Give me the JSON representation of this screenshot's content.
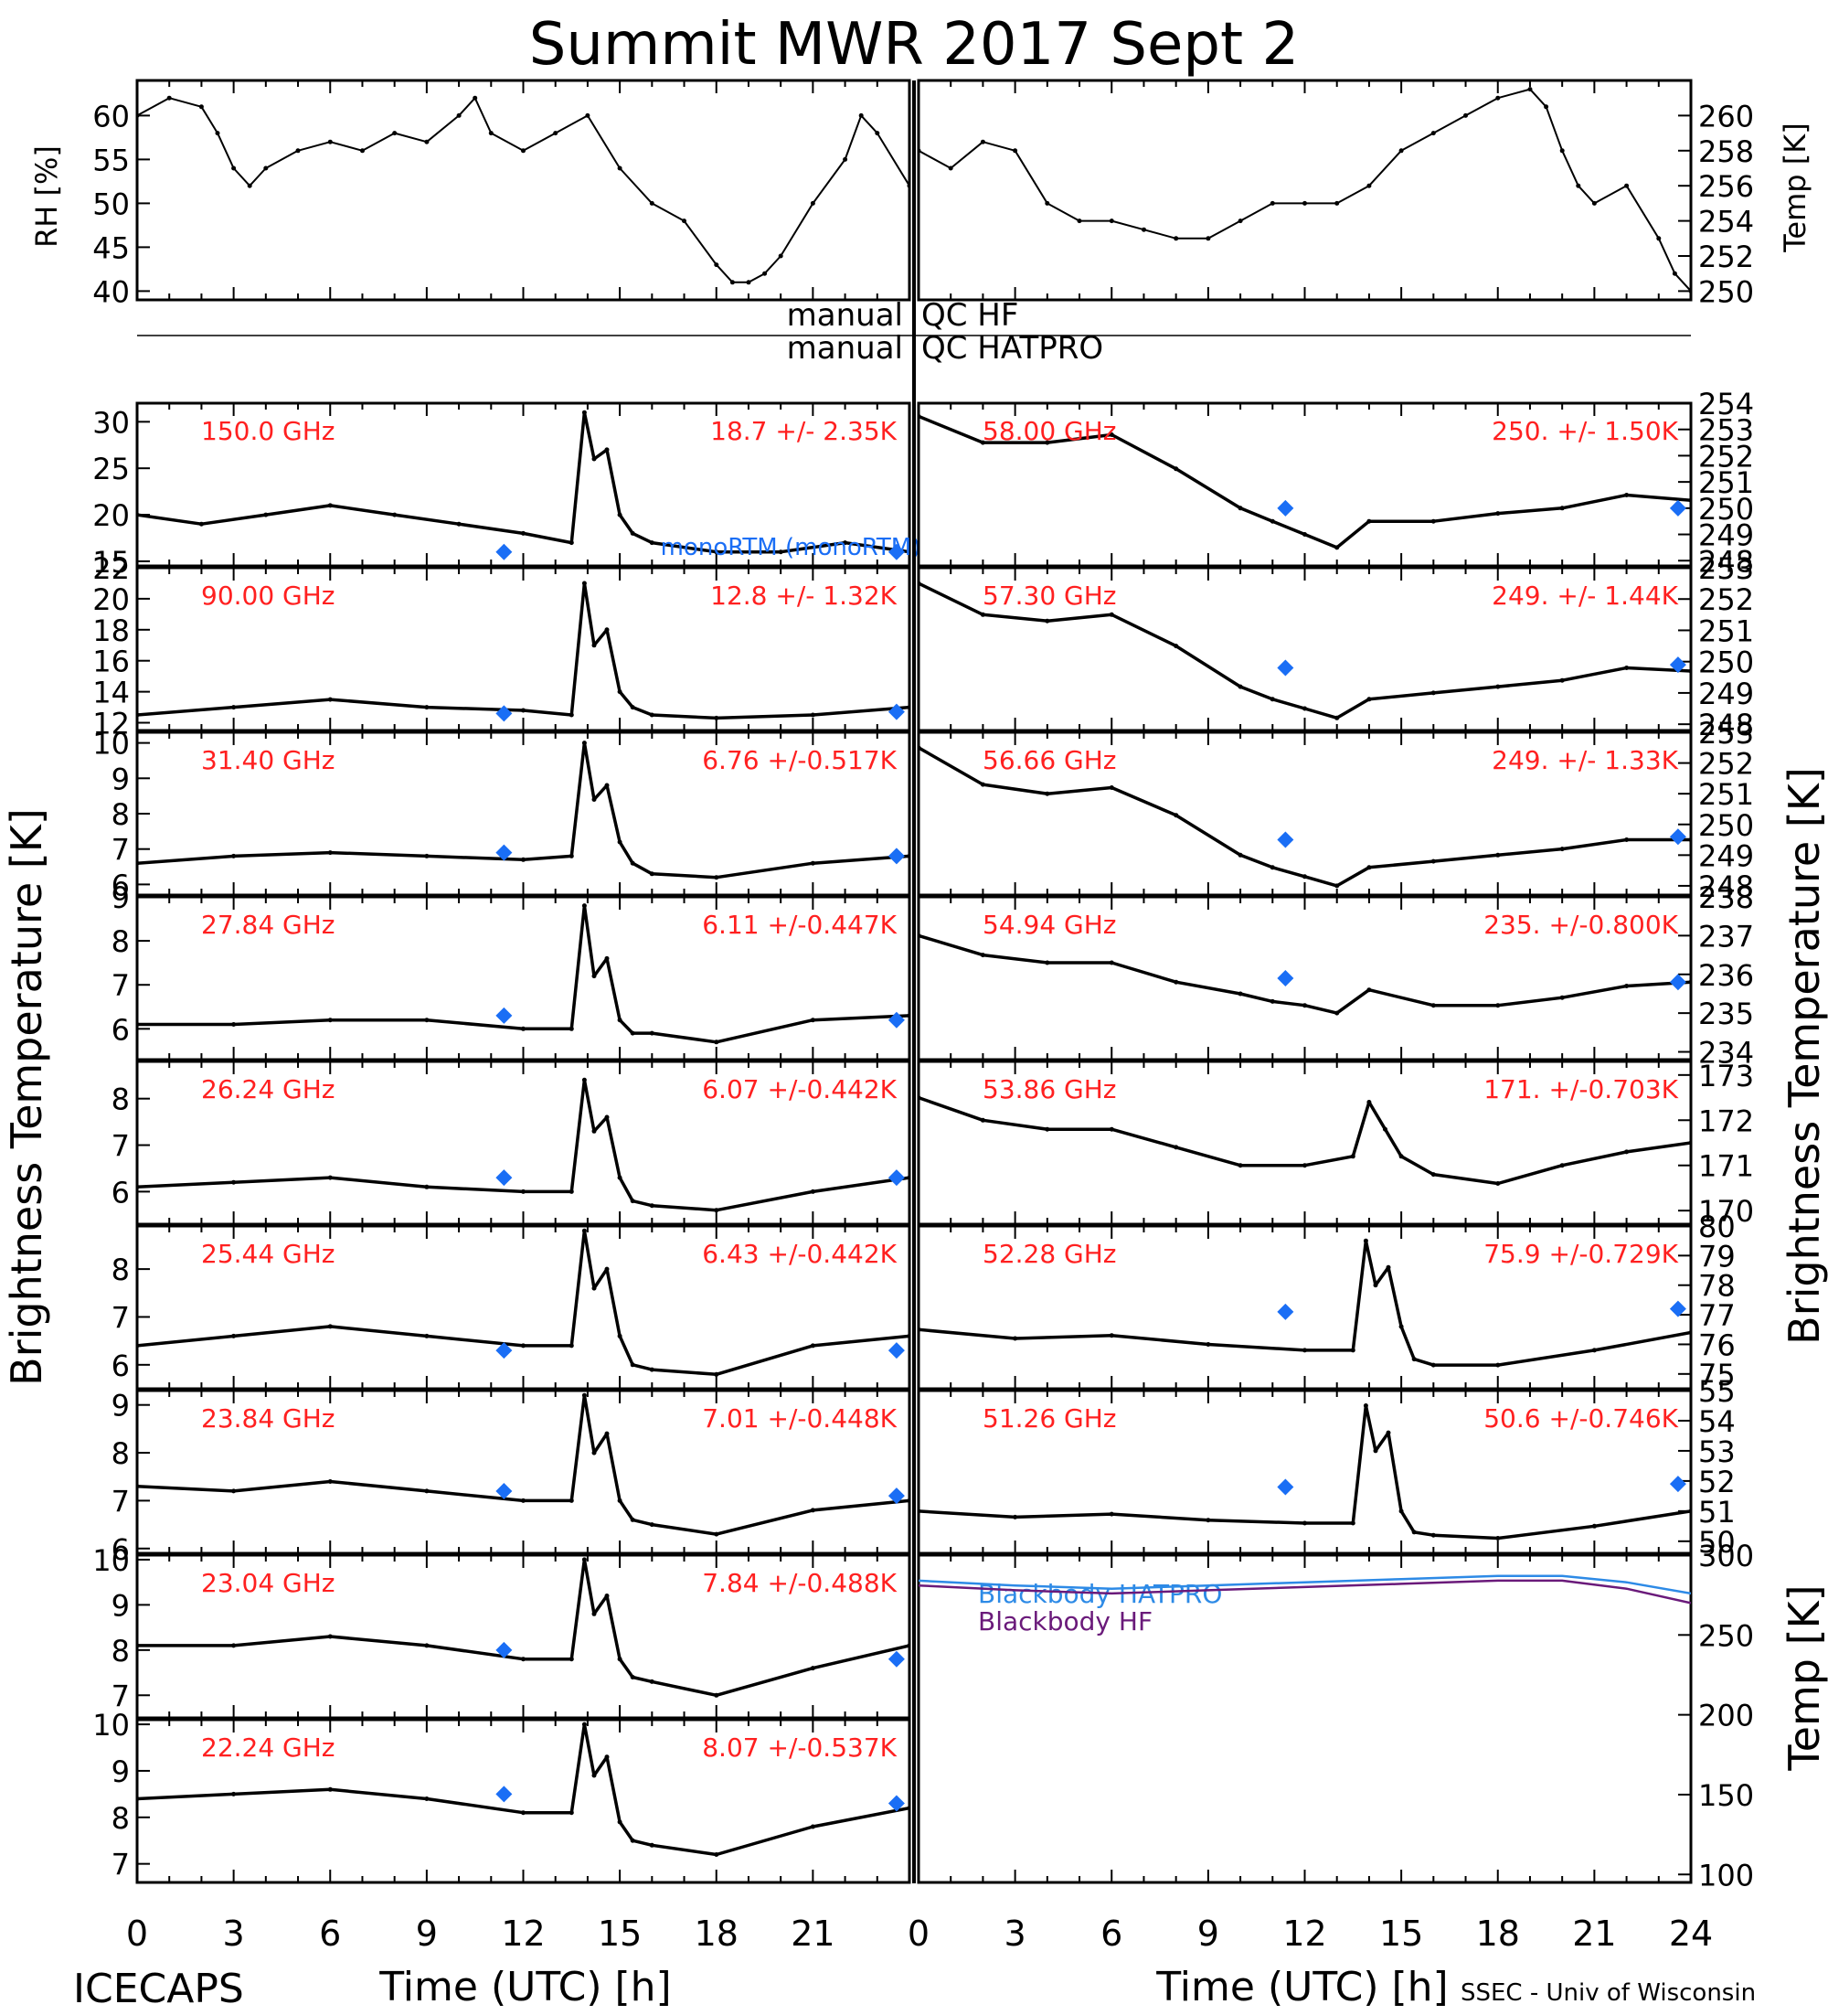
{
  "title": "Summit MWR 2017 Sept  2",
  "footer": {
    "left": "ICECAPS",
    "right": "SSEC - Univ of Wisconsin"
  },
  "qc": {
    "left1": "manual",
    "right1": "QC HF",
    "left2": "manual",
    "right2": "QC HATPRO"
  },
  "labels": {
    "rh": "RH [%]",
    "temp_top": "Temp [K]",
    "tb_left": "Brightness Temperature [K]",
    "tb_right": "Brightness Temperature [K]",
    "temp_bottom": "Temp [K]",
    "xlabel_left": "Time (UTC) [h]",
    "xlabel_right": "Time (UTC) [h]"
  },
  "colors": {
    "data": "#000000",
    "text_red": "#ff2020",
    "marker": "#1a6ef5",
    "bb_hatpro": "#2d8ae6",
    "bb_hf": "#6a1a7a"
  },
  "x_axis": {
    "range": [
      0,
      24
    ],
    "ticks": [
      "0",
      "3",
      "6",
      "9",
      "12",
      "15",
      "18",
      "21",
      "24"
    ],
    "left_panel_last_tick_shown": false
  },
  "chart_data": [
    {
      "type": "scatter",
      "id": "rh",
      "ylabel": "RH [%]",
      "ylim": [
        39,
        64
      ],
      "yticks": [
        40,
        45,
        50,
        55,
        60
      ],
      "x": [
        0,
        1,
        2,
        2.5,
        3,
        3.5,
        4,
        5,
        6,
        7,
        8,
        9,
        10,
        10.5,
        11,
        12,
        13,
        14,
        15,
        16,
        17,
        18,
        18.5,
        19,
        19.5,
        20,
        21,
        22,
        22.5,
        23,
        24
      ],
      "y": [
        60,
        62,
        61,
        58,
        54,
        52,
        54,
        56,
        57,
        56,
        58,
        57,
        60,
        62,
        58,
        56,
        58,
        60,
        54,
        50,
        48,
        43,
        41,
        41,
        42,
        44,
        50,
        55,
        60,
        58,
        52
      ]
    },
    {
      "type": "line",
      "id": "temp",
      "ylabel": "Temp [K]",
      "ylim": [
        249.5,
        262
      ],
      "yticks": [
        250,
        252,
        254,
        256,
        258,
        260
      ],
      "x": [
        0,
        1,
        2,
        3,
        4,
        5,
        6,
        7,
        8,
        9,
        10,
        11,
        12,
        13,
        14,
        15,
        16,
        17,
        18,
        19,
        19.5,
        20,
        20.5,
        21,
        22,
        23,
        23.5,
        24
      ],
      "y": [
        258,
        257,
        258.5,
        258,
        255,
        254,
        254,
        253.5,
        253,
        253,
        254,
        255,
        255,
        255,
        256,
        258,
        259,
        260,
        261,
        261.5,
        260.5,
        258,
        256,
        255,
        256,
        253,
        251,
        250
      ]
    },
    {
      "type": "scatter",
      "id": "150.0",
      "freq_label": "150.0 GHz",
      "stat_label": "18.7 +/-  2.35K",
      "ylim": [
        14.5,
        32
      ],
      "yticks": [
        15,
        20,
        25,
        30
      ],
      "x": [
        0,
        2,
        4,
        6,
        8,
        10,
        12,
        13.5,
        13.9,
        14.2,
        14.6,
        15,
        15.4,
        16,
        18,
        20,
        22,
        24
      ],
      "y": [
        20,
        19,
        20,
        21,
        20,
        19,
        18,
        17,
        31,
        26,
        27,
        20,
        18,
        17,
        16,
        16,
        17,
        16
      ],
      "model": [
        {
          "x": 11.4,
          "y": 16
        },
        {
          "x": 23.6,
          "y": 16
        }
      ],
      "model_label": "monoRTM (monoRTM)"
    },
    {
      "type": "scatter",
      "id": "90.00",
      "freq_label": "90.00 GHz",
      "stat_label": "12.8 +/-  1.32K",
      "ylim": [
        11.5,
        22
      ],
      "yticks": [
        12,
        14,
        16,
        18,
        20,
        22
      ],
      "x": [
        0,
        3,
        6,
        9,
        12,
        13.5,
        13.9,
        14.2,
        14.6,
        15,
        15.4,
        16,
        18,
        21,
        24
      ],
      "y": [
        12.5,
        13,
        13.5,
        13,
        12.8,
        12.5,
        21,
        17,
        18,
        14,
        13,
        12.5,
        12.3,
        12.5,
        13
      ],
      "model": [
        {
          "x": 11.4,
          "y": 12.6
        },
        {
          "x": 23.6,
          "y": 12.7
        }
      ]
    },
    {
      "type": "scatter",
      "id": "31.40",
      "freq_label": "31.40 GHz",
      "stat_label": "6.76 +/-0.517K",
      "ylim": [
        5.7,
        10.3
      ],
      "yticks": [
        6,
        7,
        8,
        9,
        10
      ],
      "x": [
        0,
        3,
        6,
        9,
        12,
        13.5,
        13.9,
        14.2,
        14.6,
        15,
        15.4,
        16,
        18,
        21,
        24
      ],
      "y": [
        6.6,
        6.8,
        6.9,
        6.8,
        6.7,
        6.8,
        10,
        8.4,
        8.8,
        7.2,
        6.6,
        6.3,
        6.2,
        6.6,
        6.8
      ],
      "model": [
        {
          "x": 11.4,
          "y": 6.9
        },
        {
          "x": 23.6,
          "y": 6.8
        }
      ]
    },
    {
      "type": "scatter",
      "id": "27.84",
      "freq_label": "27.84 GHz",
      "stat_label": "6.11 +/-0.447K",
      "ylim": [
        5.3,
        9
      ],
      "yticks": [
        6,
        7,
        8,
        9
      ],
      "x": [
        0,
        3,
        6,
        9,
        12,
        13.5,
        13.9,
        14.2,
        14.6,
        15,
        15.4,
        16,
        18,
        21,
        24
      ],
      "y": [
        6.1,
        6.1,
        6.2,
        6.2,
        6.0,
        6.0,
        8.8,
        7.2,
        7.6,
        6.2,
        5.9,
        5.9,
        5.7,
        6.2,
        6.3
      ],
      "model": [
        {
          "x": 11.4,
          "y": 6.3
        },
        {
          "x": 23.6,
          "y": 6.2
        }
      ]
    },
    {
      "type": "scatter",
      "id": "26.24",
      "freq_label": "26.24 GHz",
      "stat_label": "6.07 +/-0.442K",
      "ylim": [
        5.3,
        8.8
      ],
      "yticks": [
        6,
        7,
        8
      ],
      "x": [
        0,
        3,
        6,
        9,
        12,
        13.5,
        13.9,
        14.2,
        14.6,
        15,
        15.4,
        16,
        18,
        21,
        24
      ],
      "y": [
        6.1,
        6.2,
        6.3,
        6.1,
        6.0,
        6.0,
        8.4,
        7.3,
        7.6,
        6.3,
        5.8,
        5.7,
        5.6,
        6.0,
        6.3
      ],
      "model": [
        {
          "x": 11.4,
          "y": 6.3
        },
        {
          "x": 23.6,
          "y": 6.3
        }
      ]
    },
    {
      "type": "scatter",
      "id": "25.44",
      "freq_label": "25.44 GHz",
      "stat_label": "6.43 +/-0.442K",
      "ylim": [
        5.5,
        8.9
      ],
      "yticks": [
        6,
        7,
        8
      ],
      "x": [
        0,
        3,
        6,
        9,
        12,
        13.5,
        13.9,
        14.2,
        14.6,
        15,
        15.4,
        16,
        18,
        21,
        24
      ],
      "y": [
        6.4,
        6.6,
        6.8,
        6.6,
        6.4,
        6.4,
        8.8,
        7.6,
        8.0,
        6.6,
        6.0,
        5.9,
        5.8,
        6.4,
        6.6
      ],
      "model": [
        {
          "x": 11.4,
          "y": 6.3
        },
        {
          "x": 23.6,
          "y": 6.3
        }
      ]
    },
    {
      "type": "scatter",
      "id": "23.84",
      "freq_label": "23.84 GHz",
      "stat_label": "7.01 +/-0.448K",
      "ylim": [
        5.9,
        9.3
      ],
      "yticks": [
        6,
        7,
        8,
        9
      ],
      "x": [
        0,
        3,
        6,
        9,
        12,
        13.5,
        13.9,
        14.2,
        14.6,
        15,
        15.4,
        16,
        18,
        21,
        24
      ],
      "y": [
        7.3,
        7.2,
        7.4,
        7.2,
        7.0,
        7.0,
        9.2,
        8.0,
        8.4,
        7.0,
        6.6,
        6.5,
        6.3,
        6.8,
        7.0
      ],
      "model": [
        {
          "x": 11.4,
          "y": 7.2
        },
        {
          "x": 23.6,
          "y": 7.1
        }
      ]
    },
    {
      "type": "scatter",
      "id": "23.04",
      "freq_label": "23.04 GHz",
      "stat_label": "7.84 +/-0.488K",
      "ylim": [
        6.5,
        10.1
      ],
      "yticks": [
        7,
        8,
        9,
        10
      ],
      "x": [
        0,
        3,
        6,
        9,
        12,
        13.5,
        13.9,
        14.2,
        14.6,
        15,
        15.4,
        16,
        18,
        21,
        24
      ],
      "y": [
        8.1,
        8.1,
        8.3,
        8.1,
        7.8,
        7.8,
        10,
        8.8,
        9.2,
        7.8,
        7.4,
        7.3,
        7.0,
        7.6,
        8.1
      ],
      "model": [
        {
          "x": 11.4,
          "y": 8.0
        },
        {
          "x": 23.6,
          "y": 7.8
        }
      ]
    },
    {
      "type": "scatter",
      "id": "22.24",
      "freq_label": "22.24 GHz",
      "stat_label": "8.07 +/-0.537K",
      "ylim": [
        6.6,
        10.1
      ],
      "yticks": [
        7,
        8,
        9,
        10
      ],
      "x": [
        0,
        3,
        6,
        9,
        12,
        13.5,
        13.9,
        14.2,
        14.6,
        15,
        15.4,
        16,
        18,
        21,
        24
      ],
      "y": [
        8.4,
        8.5,
        8.6,
        8.4,
        8.1,
        8.1,
        10,
        8.9,
        9.3,
        7.9,
        7.5,
        7.4,
        7.2,
        7.8,
        8.2
      ],
      "model": [
        {
          "x": 11.4,
          "y": 8.5
        },
        {
          "x": 23.6,
          "y": 8.3
        }
      ]
    },
    {
      "type": "scatter",
      "id": "58.00",
      "freq_label": "58.00 GHz",
      "stat_label": "250. +/- 1.50K",
      "ylim": [
        247.8,
        254
      ],
      "yticks": [
        248,
        249,
        250,
        251,
        252,
        253,
        254
      ],
      "x": [
        0,
        2,
        4,
        6,
        8,
        10,
        11,
        12,
        13,
        14,
        16,
        18,
        20,
        22,
        24
      ],
      "y": [
        253.5,
        252.5,
        252.5,
        252.8,
        251.5,
        250,
        249.5,
        249,
        248.5,
        249.5,
        249.5,
        249.8,
        250,
        250.5,
        250.3
      ],
      "model": [
        {
          "x": 11.4,
          "y": 250
        },
        {
          "x": 23.6,
          "y": 250
        }
      ]
    },
    {
      "type": "scatter",
      "id": "57.30",
      "freq_label": "57.30 GHz",
      "stat_label": "249. +/- 1.44K",
      "ylim": [
        247.8,
        253
      ],
      "yticks": [
        248,
        249,
        250,
        251,
        252,
        253
      ],
      "x": [
        0,
        2,
        4,
        6,
        8,
        10,
        11,
        12,
        13,
        14,
        16,
        18,
        20,
        22,
        24
      ],
      "y": [
        252.5,
        251.5,
        251.3,
        251.5,
        250.5,
        249.2,
        248.8,
        248.5,
        248.2,
        248.8,
        249,
        249.2,
        249.4,
        249.8,
        249.7
      ],
      "model": [
        {
          "x": 11.4,
          "y": 249.8
        },
        {
          "x": 23.6,
          "y": 249.9
        }
      ]
    },
    {
      "type": "scatter",
      "id": "56.66",
      "freq_label": "56.66 GHz",
      "stat_label": "249. +/- 1.33K",
      "ylim": [
        247.7,
        253
      ],
      "yticks": [
        248,
        249,
        250,
        251,
        252,
        253
      ],
      "x": [
        0,
        2,
        4,
        6,
        8,
        10,
        11,
        12,
        13,
        14,
        16,
        18,
        20,
        22,
        24
      ],
      "y": [
        252.5,
        251.3,
        251,
        251.2,
        250.3,
        249,
        248.6,
        248.3,
        248.0,
        248.6,
        248.8,
        249,
        249.2,
        249.5,
        249.5
      ],
      "model": [
        {
          "x": 11.4,
          "y": 249.5
        },
        {
          "x": 23.6,
          "y": 249.6
        }
      ]
    },
    {
      "type": "scatter",
      "id": "54.94",
      "freq_label": "54.94 GHz",
      "stat_label": "235. +/-0.800K",
      "ylim": [
        233.8,
        238
      ],
      "yticks": [
        234,
        235,
        236,
        237,
        238
      ],
      "x": [
        0,
        2,
        4,
        6,
        8,
        10,
        11,
        12,
        13,
        14,
        16,
        18,
        20,
        22,
        24
      ],
      "y": [
        237,
        236.5,
        236.3,
        236.3,
        235.8,
        235.5,
        235.3,
        235.2,
        235,
        235.6,
        235.2,
        235.2,
        235.4,
        235.7,
        235.8
      ],
      "model": [
        {
          "x": 11.4,
          "y": 235.9
        },
        {
          "x": 23.6,
          "y": 235.8
        }
      ]
    },
    {
      "type": "scatter",
      "id": "53.86",
      "freq_label": "53.86 GHz",
      "stat_label": "171. +/-0.703K",
      "ylim": [
        169.7,
        173.3
      ],
      "yticks": [
        170,
        171,
        172,
        173
      ],
      "x": [
        0,
        2,
        4,
        6,
        8,
        10,
        12,
        13.5,
        14,
        14.5,
        15,
        16,
        18,
        20,
        22,
        24
      ],
      "y": [
        172.5,
        172,
        171.8,
        171.8,
        171.4,
        171,
        171,
        171.2,
        172.4,
        171.8,
        171.2,
        170.8,
        170.6,
        171,
        171.3,
        171.5
      ],
      "model": []
    },
    {
      "type": "scatter",
      "id": "52.28",
      "freq_label": "52.28 GHz",
      "stat_label": "75.9 +/-0.729K",
      "ylim": [
        74.5,
        80
      ],
      "yticks": [
        75,
        76,
        77,
        78,
        79,
        80
      ],
      "x": [
        0,
        3,
        6,
        9,
        12,
        13.5,
        13.9,
        14.2,
        14.6,
        15,
        15.4,
        16,
        18,
        21,
        24
      ],
      "y": [
        76.5,
        76.2,
        76.3,
        76,
        75.8,
        75.8,
        79.5,
        78,
        78.6,
        76.6,
        75.5,
        75.3,
        75.3,
        75.8,
        76.4
      ],
      "model": [
        {
          "x": 11.4,
          "y": 77.1
        },
        {
          "x": 23.6,
          "y": 77.2
        }
      ]
    },
    {
      "type": "scatter",
      "id": "51.26",
      "freq_label": "51.26 GHz",
      "stat_label": "50.6 +/-0.746K",
      "ylim": [
        49.6,
        55
      ],
      "yticks": [
        50,
        51,
        52,
        53,
        54,
        55
      ],
      "x": [
        0,
        3,
        6,
        9,
        12,
        13.5,
        13.9,
        14.2,
        14.6,
        15,
        15.4,
        16,
        18,
        21,
        24
      ],
      "y": [
        51,
        50.8,
        50.9,
        50.7,
        50.6,
        50.6,
        54.5,
        53,
        53.6,
        51,
        50.3,
        50.2,
        50.1,
        50.5,
        51
      ],
      "model": [
        {
          "x": 11.4,
          "y": 51.8
        },
        {
          "x": 23.6,
          "y": 51.9
        }
      ]
    },
    {
      "type": "line",
      "id": "blackbody",
      "ylabel": "Temp [K]",
      "ylim": [
        95,
        300
      ],
      "yticks": [
        100,
        150,
        200,
        250,
        300
      ],
      "x": [
        0,
        3,
        6,
        9,
        12,
        15,
        18,
        20,
        22,
        24
      ],
      "series": [
        {
          "name": "Blackbody HATPRO",
          "values": [
            284,
            281,
            279,
            281,
            283,
            285,
            287,
            287,
            283,
            276
          ]
        },
        {
          "name": "Blackbody HF",
          "values": [
            281,
            278,
            276,
            278,
            280,
            282,
            284,
            284,
            279,
            270
          ]
        }
      ]
    }
  ]
}
